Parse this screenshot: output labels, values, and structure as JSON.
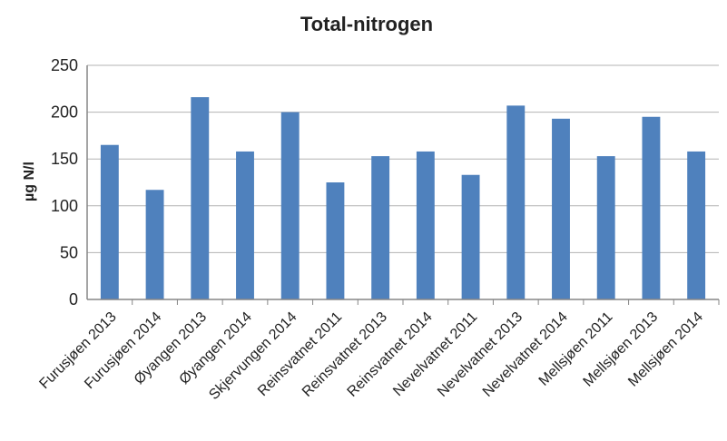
{
  "chart_data": {
    "type": "bar",
    "title": "Total-nitrogen",
    "xlabel": "",
    "ylabel": "µg N/l",
    "ylim": [
      0,
      250
    ],
    "yticks": [
      0,
      50,
      100,
      150,
      200,
      250
    ],
    "grid": true,
    "bar_color": "#4F81BD",
    "categories": [
      "Furusjøen 2013",
      "Furusjøen 2014",
      "Øyangen 2013",
      "Øyangen 2014",
      "Skjervungen 2014",
      "Reinsvatnet 2011",
      "Reinsvatnet 2013",
      "Reinsvatnet 2014",
      "Nevelvatnet 2011",
      "Nevelvatnet 2013",
      "Nevelvatnet 2014",
      "Mellsjøen 2011",
      "Mellsjøen 2013",
      "Mellsjøen 2014"
    ],
    "values": [
      165,
      117,
      216,
      158,
      200,
      125,
      153,
      158,
      133,
      207,
      193,
      153,
      195,
      158
    ]
  }
}
